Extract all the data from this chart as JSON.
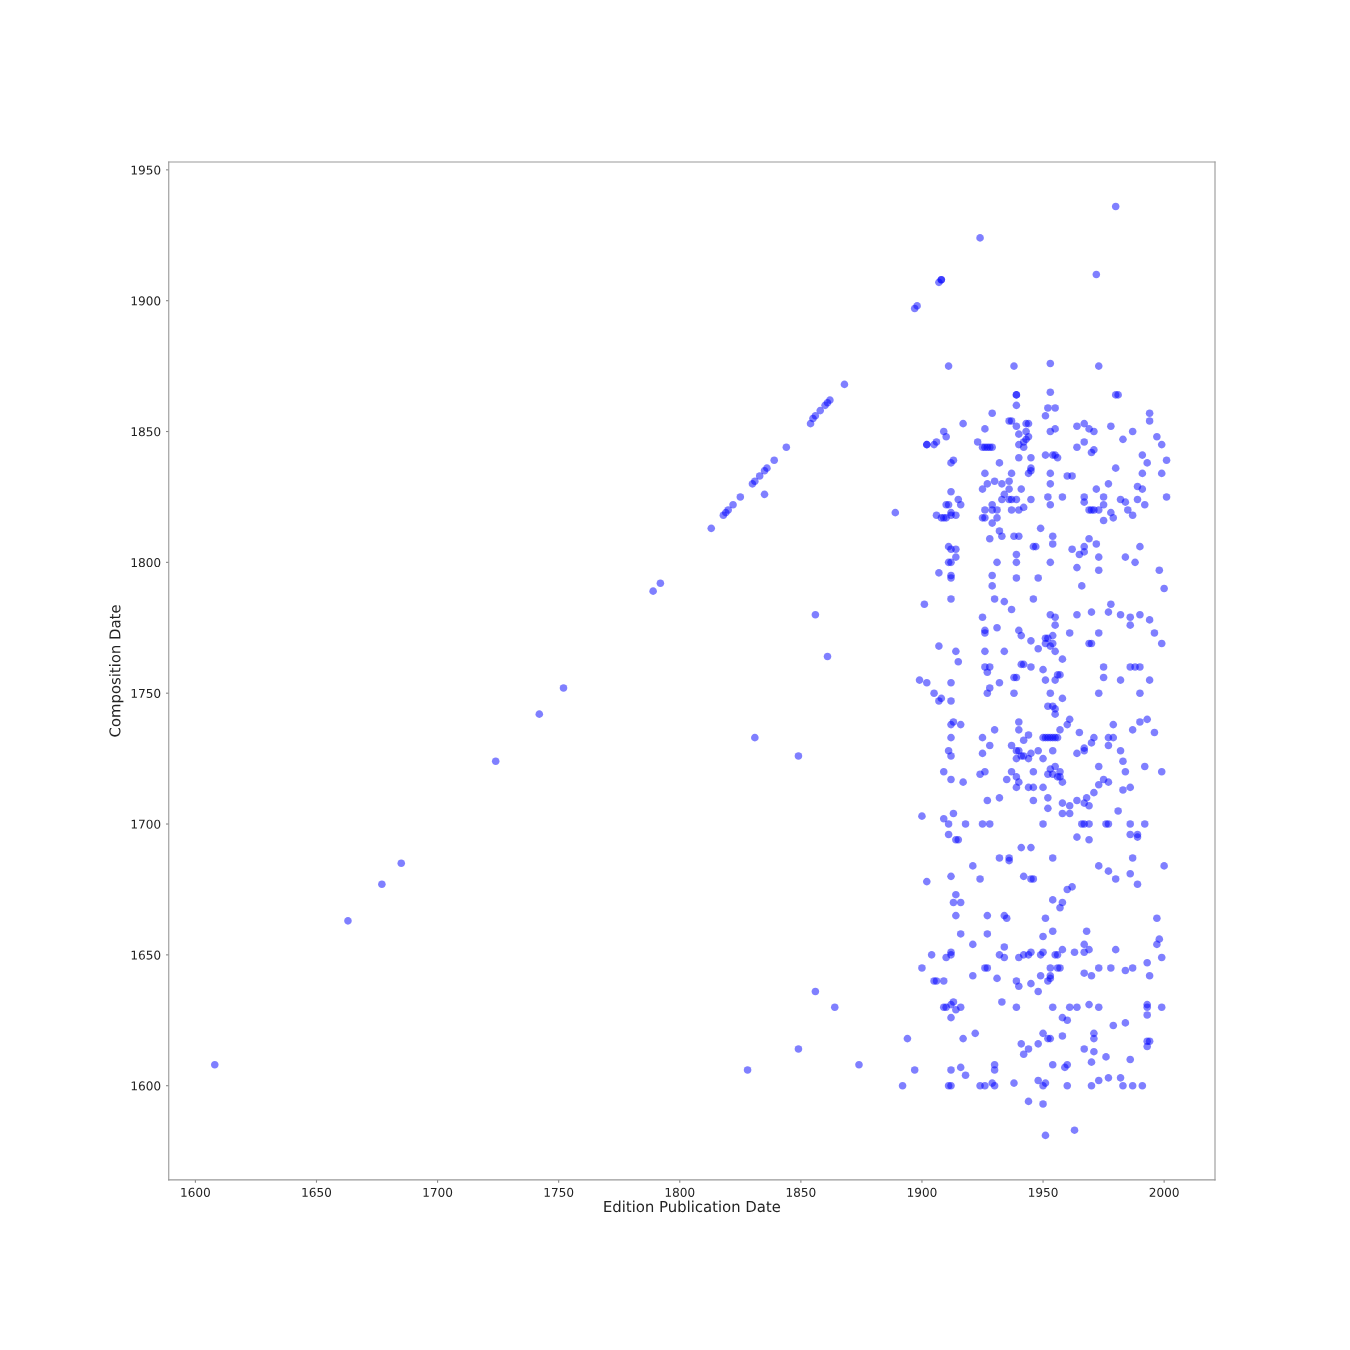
{
  "chart_data": {
    "type": "scatter",
    "xlabel": "Edition Publication Date",
    "ylabel": "Composition Date",
    "color": "#0000ff",
    "marker": "circle",
    "xlim": [
      1589,
      2021
    ],
    "ylim": [
      1564,
      1953
    ],
    "xticks": [
      1600,
      1650,
      1700,
      1750,
      1800,
      1850,
      1900,
      1950,
      2000
    ],
    "yticks": [
      1600,
      1650,
      1700,
      1750,
      1800,
      1850,
      1900,
      1950
    ],
    "x": [
      1608,
      1663,
      1677,
      1685,
      1724,
      1742,
      1752,
      1789,
      1792,
      1813,
      1818,
      1819,
      1820,
      1822,
      1825,
      1830,
      1831,
      1833,
      1835,
      1836,
      1835,
      1839,
      1844,
      1854,
      1855,
      1856,
      1858,
      1860,
      1861,
      1862,
      1868,
      1889,
      1897,
      1898,
      1907,
      1908,
      1908,
      1924,
      1980,
      1972,
      1856,
      1861,
      1831,
      1849,
      1856,
      1864,
      1849,
      1828,
      1874,
      1911,
      1938,
      1939,
      1939,
      1939,
      1929,
      1917,
      1936,
      1937,
      1939,
      1943,
      1944,
      1926,
      1909,
      1910,
      1940,
      1943,
      1944,
      1942,
      1940,
      1942,
      1943,
      1902,
      1902,
      1905,
      1906,
      1923,
      1925,
      1926,
      1927,
      1928,
      1929,
      1912,
      1913,
      1932,
      1940,
      1945,
      1944,
      1945,
      1945,
      1926,
      1937,
      1927,
      1930,
      1933,
      1936,
      1925,
      1936,
      1941,
      1912,
      1915,
      1916,
      1934,
      1933,
      1936,
      1937,
      1939,
      1945,
      1910,
      1911,
      1912,
      1906,
      1908,
      1909,
      1910,
      1912,
      1914,
      1925,
      1926,
      1926,
      1929,
      1929,
      1931,
      1931,
      1929,
      1937,
      1940,
      1942,
      1932,
      1933,
      1928,
      1938,
      1940,
      1911,
      1912,
      1914,
      1946,
      1914,
      1911,
      1912,
      1939,
      1939,
      1931,
      1907,
      1912,
      1912,
      1929,
      1929,
      1939,
      1912,
      1901,
      1930,
      1934,
      1937,
      1925,
      1946,
      1953,
      1973,
      1953,
      1980,
      1981,
      1952,
      1955,
      1951,
      1955,
      1953,
      1994,
      1994,
      1964,
      1967,
      1969,
      1971,
      1978,
      1987,
      1997,
      1999,
      1983,
      1967,
      1964,
      1970,
      1971,
      1951,
      1954,
      1955,
      1956,
      1991,
      1993,
      2001,
      1980,
      1953,
      1960,
      1962,
      1991,
      1999,
      1953,
      1977,
      1972,
      1989,
      1991,
      1952,
      1953,
      1958,
      1967,
      1967,
      1975,
      1975,
      1982,
      1984,
      1989,
      1992,
      2001,
      1969,
      1970,
      1971,
      1973,
      1978,
      1979,
      1975,
      1985,
      1987,
      1949,
      1954,
      1954,
      1947,
      1969,
      1967,
      1967,
      1965,
      1962,
      1972,
      1973,
      1990,
      1984,
      1988,
      1953,
      1964,
      1973,
      1998,
      1948,
      1966,
      2000,
      1978,
      1953,
      1955,
      1964,
      1970,
      1977,
      1982,
      1986,
      1990,
      1994,
      1926,
      1926,
      1931,
      1940,
      1941,
      1945,
      1907,
      1914,
      1915,
      1926,
      1934,
      1926,
      1928,
      1927,
      1941,
      1942,
      1945,
      1938,
      1939,
      1899,
      1902,
      1912,
      1928,
      1927,
      1932,
      1938,
      1905,
      1908,
      1907,
      1912,
      1912,
      1913,
      1916,
      1940,
      1940,
      1930,
      1912,
      1925,
      1928,
      1944,
      1942,
      1937,
      1939,
      1940,
      1941,
      1942,
      1939,
      1944,
      1945,
      1911,
      1912,
      1925,
      1909,
      1912,
      1917,
      1926,
      1924,
      1937,
      1939,
      1935,
      1940,
      1939,
      1944,
      1946,
      1946,
      1927,
      1932,
      1946,
      1900,
      1909,
      1911,
      1913,
      1918,
      1925,
      1928,
      1911,
      1914,
      1915,
      1941,
      1945,
      1932,
      1936,
      1936,
      1921,
      1912,
      1924,
      1942,
      1945,
      1902,
      1955,
      1986,
      1951,
      1952,
      1954,
      1948,
      1951,
      1953,
      1954,
      1955,
      1961,
      1969,
      1970,
      1973,
      1996,
      1999,
      1958,
      1950,
      1951,
      1956,
      1957,
      1955,
      1975,
      1975,
      1986,
      1988,
      1990,
      1982,
      1994,
      1953,
      1958,
      1973,
      1990,
      1952,
      1954,
      1955,
      1955,
      1961,
      1960,
      1957,
      1979,
      1993,
      1990,
      1987,
      1996,
      1965,
      1950,
      1951,
      1952,
      1953,
      1954,
      1955,
      1956,
      1971,
      1970,
      1977,
      1979,
      1977,
      1967,
      1967,
      1964,
      1982,
      1983,
      1984,
      1948,
      1950,
      1954,
      1955,
      1953,
      1952,
      1954,
      1957,
      1956,
      1957,
      1958,
      1973,
      1992,
      1999,
      1975,
      1977,
      1973,
      1971,
      1983,
      1986,
      1950,
      1952,
      1952,
      1958,
      1961,
      1958,
      1961,
      1964,
      1967,
      1968,
      1969,
      1981,
      1950,
      1966,
      1967,
      1969,
      1976,
      1977,
      1986,
      1992,
      1964,
      1969,
      1986,
      1989,
      1989,
      1954,
      1987,
      1973,
      1977,
      1986,
      1980,
      2000,
      1914,
      1913,
      1916,
      1914,
      1927,
      1934,
      1935,
      1916,
      1927,
      1921,
      1904,
      1910,
      1912,
      1912,
      1934,
      1932,
      1934,
      1940,
      1942,
      1944,
      1945,
      1900,
      1926,
      1927,
      1905,
      1906,
      1909,
      1921,
      1931,
      1939,
      1940,
      1945,
      1909,
      1910,
      1912,
      1913,
      1916,
      1914,
      1912,
      1933,
      1939,
      1894,
      1917,
      1922,
      1941,
      1944,
      1942,
      1897,
      1912,
      1916,
      1918,
      1930,
      1930,
      1892,
      1911,
      1912,
      1924,
      1926,
      1929,
      1930,
      1938,
      1944,
      1946,
      1960,
      1962,
      1954,
      1958,
      1957,
      1989,
      1951,
      1997,
      1998,
      1997,
      1968,
      1954,
      1950,
      1967,
      1969,
      1967,
      1958,
      1956,
      1955,
      1949,
      1950,
      1963,
      1980,
      1999,
      1993,
      1953,
      1956,
      1957,
      1973,
      1978,
      1984,
      1987,
      1949,
      1953,
      1953,
      1952,
      1967,
      1970,
      1994,
      1948,
      1954,
      1961,
      1964,
      1969,
      1973,
      1993,
      1993,
      1993,
      1999,
      1958,
      1960,
      1979,
      1984,
      1950,
      1952,
      1953,
      1958,
      1948,
      1971,
      1971,
      1993,
      1994,
      1993,
      1967,
      1971,
      1970,
      1976,
      1986,
      1954,
      1959,
      1960,
      1948,
      1950,
      1951,
      1960,
      1970,
      1973,
      1977,
      1982,
      1983,
      1987,
      1991,
      1950,
      1951,
      1963
    ],
    "values": [
      1608,
      1663,
      1677,
      1685,
      1724,
      1742,
      1752,
      1789,
      1792,
      1813,
      1818,
      1819,
      1820,
      1822,
      1825,
      1830,
      1831,
      1833,
      1835,
      1836,
      1826,
      1839,
      1844,
      1853,
      1855,
      1856,
      1858,
      1860,
      1861,
      1862,
      1868,
      1819,
      1897,
      1898,
      1907,
      1908,
      1908,
      1924,
      1936,
      1910,
      1780,
      1764,
      1733,
      1726,
      1636,
      1630,
      1614,
      1606,
      1608,
      1875,
      1875,
      1864,
      1864,
      1860,
      1857,
      1853,
      1854,
      1854,
      1852,
      1853,
      1853,
      1851,
      1850,
      1848,
      1849,
      1850,
      1848,
      1846,
      1845,
      1844,
      1847,
      1845,
      1845,
      1845,
      1846,
      1846,
      1844,
      1844,
      1844,
      1844,
      1844,
      1838,
      1839,
      1838,
      1840,
      1840,
      1834,
      1835,
      1836,
      1834,
      1834,
      1830,
      1831,
      1830,
      1831,
      1828,
      1828,
      1828,
      1827,
      1824,
      1822,
      1826,
      1824,
      1824,
      1824,
      1824,
      1824,
      1822,
      1822,
      1819,
      1818,
      1817,
      1817,
      1817,
      1818,
      1818,
      1817,
      1820,
      1817,
      1822,
      1820,
      1820,
      1817,
      1815,
      1820,
      1820,
      1821,
      1812,
      1810,
      1809,
      1810,
      1810,
      1806,
      1805,
      1805,
      1806,
      1802,
      1800,
      1800,
      1803,
      1800,
      1800,
      1796,
      1795,
      1794,
      1795,
      1791,
      1794,
      1786,
      1784,
      1786,
      1785,
      1782,
      1779,
      1786,
      1876,
      1875,
      1865,
      1864,
      1864,
      1859,
      1859,
      1856,
      1851,
      1850,
      1857,
      1854,
      1852,
      1853,
      1851,
      1850,
      1852,
      1850,
      1848,
      1845,
      1847,
      1846,
      1844,
      1842,
      1843,
      1841,
      1841,
      1841,
      1840,
      1841,
      1838,
      1839,
      1836,
      1834,
      1833,
      1833,
      1834,
      1834,
      1830,
      1830,
      1828,
      1829,
      1828,
      1825,
      1822,
      1825,
      1825,
      1823,
      1825,
      1822,
      1824,
      1823,
      1824,
      1822,
      1825,
      1820,
      1820,
      1820,
      1820,
      1819,
      1817,
      1816,
      1820,
      1818,
      1813,
      1810,
      1807,
      1806,
      1809,
      1806,
      1804,
      1803,
      1805,
      1807,
      1802,
      1806,
      1802,
      1800,
      1800,
      1798,
      1797,
      1797,
      1794,
      1791,
      1790,
      1784,
      1780,
      1779,
      1780,
      1781,
      1781,
      1780,
      1779,
      1780,
      1778,
      1774,
      1773,
      1775,
      1774,
      1772,
      1770,
      1768,
      1766,
      1762,
      1766,
      1766,
      1760,
      1760,
      1758,
      1761,
      1761,
      1760,
      1756,
      1756,
      1755,
      1754,
      1754,
      1752,
      1750,
      1754,
      1750,
      1750,
      1748,
      1747,
      1747,
      1738,
      1739,
      1738,
      1739,
      1736,
      1736,
      1733,
      1733,
      1730,
      1734,
      1732,
      1730,
      1728,
      1728,
      1726,
      1726,
      1725,
      1725,
      1727,
      1728,
      1726,
      1727,
      1720,
      1717,
      1716,
      1720,
      1719,
      1720,
      1718,
      1717,
      1716,
      1714,
      1714,
      1714,
      1720,
      1709,
      1710,
      1709,
      1703,
      1702,
      1700,
      1704,
      1700,
      1700,
      1700,
      1696,
      1694,
      1694,
      1691,
      1691,
      1687,
      1687,
      1686,
      1684,
      1680,
      1679,
      1680,
      1679,
      1678,
      1776,
      1776,
      1771,
      1771,
      1772,
      1767,
      1769,
      1768,
      1769,
      1766,
      1773,
      1769,
      1769,
      1773,
      1773,
      1769,
      1763,
      1759,
      1755,
      1757,
      1757,
      1755,
      1760,
      1756,
      1760,
      1760,
      1760,
      1755,
      1755,
      1750,
      1748,
      1750,
      1750,
      1745,
      1745,
      1744,
      1742,
      1740,
      1738,
      1736,
      1738,
      1740,
      1739,
      1736,
      1735,
      1735,
      1733,
      1733,
      1733,
      1733,
      1733,
      1733,
      1733,
      1733,
      1731,
      1733,
      1733,
      1730,
      1729,
      1728,
      1727,
      1728,
      1724,
      1720,
      1728,
      1725,
      1728,
      1722,
      1721,
      1719,
      1719,
      1720,
      1718,
      1718,
      1716,
      1722,
      1722,
      1720,
      1717,
      1716,
      1715,
      1712,
      1713,
      1714,
      1714,
      1710,
      1706,
      1708,
      1707,
      1704,
      1704,
      1709,
      1708,
      1710,
      1707,
      1705,
      1700,
      1700,
      1700,
      1700,
      1700,
      1700,
      1700,
      1700,
      1695,
      1694,
      1696,
      1696,
      1695,
      1687,
      1687,
      1684,
      1682,
      1681,
      1679,
      1684,
      1673,
      1670,
      1670,
      1665,
      1665,
      1665,
      1664,
      1658,
      1658,
      1654,
      1650,
      1649,
      1650,
      1651,
      1653,
      1650,
      1649,
      1649,
      1650,
      1650,
      1651,
      1645,
      1645,
      1645,
      1640,
      1640,
      1640,
      1642,
      1641,
      1640,
      1638,
      1639,
      1630,
      1630,
      1631,
      1632,
      1630,
      1629,
      1626,
      1632,
      1630,
      1618,
      1618,
      1620,
      1616,
      1614,
      1612,
      1606,
      1606,
      1607,
      1604,
      1608,
      1606,
      1600,
      1600,
      1600,
      1600,
      1600,
      1601,
      1600,
      1601,
      1594,
      1679,
      1675,
      1676,
      1671,
      1670,
      1668,
      1677,
      1664,
      1664,
      1656,
      1654,
      1659,
      1659,
      1657,
      1654,
      1652,
      1651,
      1652,
      1650,
      1650,
      1650,
      1651,
      1651,
      1652,
      1649,
      1647,
      1645,
      1645,
      1645,
      1645,
      1645,
      1644,
      1645,
      1642,
      1642,
      1641,
      1640,
      1643,
      1642,
      1642,
      1636,
      1630,
      1630,
      1630,
      1631,
      1630,
      1631,
      1630,
      1627,
      1630,
      1626,
      1625,
      1623,
      1624,
      1620,
      1618,
      1618,
      1619,
      1616,
      1620,
      1618,
      1617,
      1617,
      1615,
      1614,
      1613,
      1609,
      1611,
      1610,
      1608,
      1607,
      1608,
      1602,
      1600,
      1601,
      1600,
      1600,
      1602,
      1603,
      1603,
      1600,
      1600,
      1600,
      1593,
      1581,
      1583
    ]
  }
}
